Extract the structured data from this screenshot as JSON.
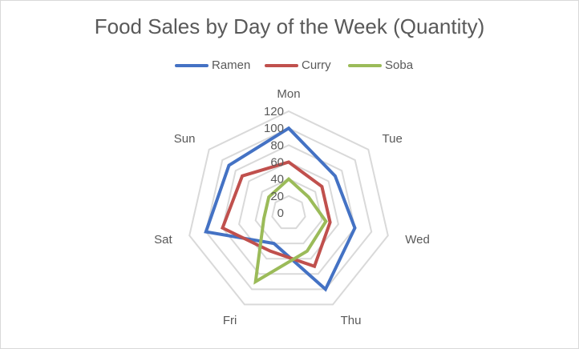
{
  "chart_data": {
    "type": "radar",
    "title": "Food Sales by Day of the Week (Quantity)",
    "categories": [
      "Mon",
      "Tue",
      "Wed",
      "Thu",
      "Fri",
      "Sat",
      "Sun"
    ],
    "r_ticks": [
      0,
      20,
      40,
      60,
      80,
      100,
      120
    ],
    "rlim": [
      0,
      120
    ],
    "grid": true,
    "legend_position": "top",
    "series": [
      {
        "name": "Ramen",
        "color": "#4472c4",
        "values": [
          100,
          70,
          80,
          100,
          40,
          100,
          90
        ]
      },
      {
        "name": "Curry",
        "color": "#c0504d",
        "values": [
          60,
          50,
          50,
          70,
          50,
          80,
          70
        ]
      },
      {
        "name": "Soba",
        "color": "#9bbb59",
        "values": [
          40,
          30,
          45,
          50,
          90,
          30,
          30
        ]
      }
    ]
  }
}
